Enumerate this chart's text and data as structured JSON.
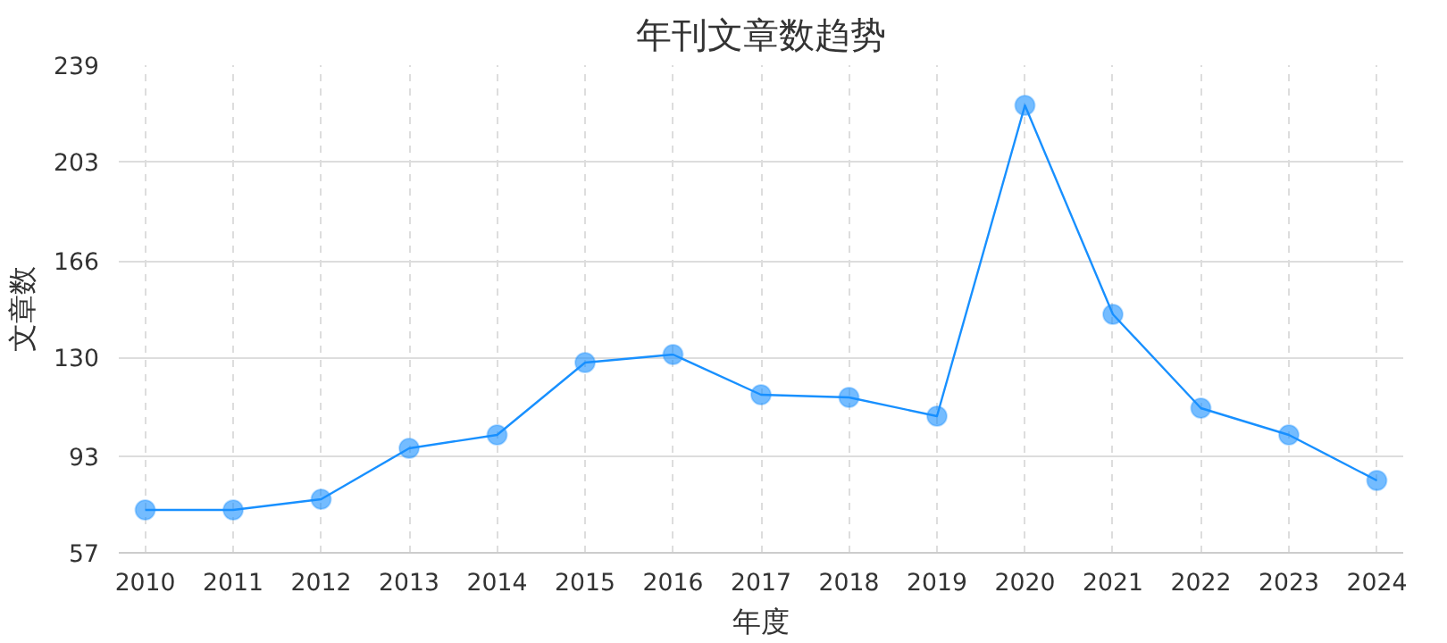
{
  "chart_data": {
    "type": "line",
    "title": "年刊文章数趋势",
    "xlabel": "年度",
    "ylabel": "文章数",
    "categories": [
      "2010",
      "2011",
      "2012",
      "2013",
      "2014",
      "2015",
      "2016",
      "2017",
      "2018",
      "2019",
      "2020",
      "2021",
      "2022",
      "2023",
      "2024"
    ],
    "series": [
      {
        "color": "#1890ff",
        "values": [
          73,
          73,
          77,
          96,
          101,
          128,
          131,
          116,
          115,
          108,
          224,
          146,
          111,
          101,
          84
        ]
      }
    ],
    "ylim": [
      57,
      239
    ],
    "yticks": [
      57,
      93,
      130,
      166,
      203,
      239
    ],
    "grid": true,
    "marker": "circle",
    "line_style": "solid"
  }
}
